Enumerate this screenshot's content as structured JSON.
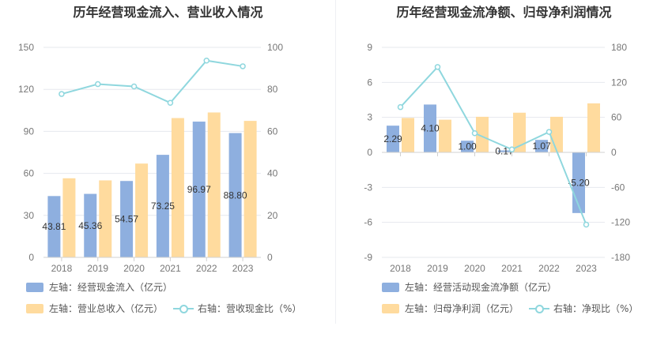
{
  "colors": {
    "bar_primary": "#8eafdf",
    "bar_secondary": "#ffdb9e",
    "line": "#8fd7de",
    "grid": "#e6e8ee",
    "axis": "#d0d0d0"
  },
  "chart_data": [
    {
      "type": "bar",
      "title": "历年经营现金流入、营业收入情况",
      "categories": [
        "2018",
        "2019",
        "2020",
        "2021",
        "2022",
        "2023"
      ],
      "left_axis": {
        "min": 0,
        "max": 150,
        "ticks": [
          "0",
          "30",
          "60",
          "90",
          "120",
          "150"
        ]
      },
      "right_axis": {
        "min": 0,
        "max": 100,
        "ticks": [
          "0",
          "20",
          "40",
          "60",
          "80",
          "100"
        ]
      },
      "series": [
        {
          "name": "左轴：经营现金流入（亿元）",
          "kind": "bar",
          "axis": "left",
          "values": [
            43.81,
            45.36,
            54.57,
            73.25,
            96.97,
            88.8
          ],
          "labels": [
            "43.81",
            "45.36",
            "54.57",
            "73.25",
            "96.97",
            "88.80"
          ]
        },
        {
          "name": "左轴：营业总收入（亿元）",
          "kind": "bar",
          "axis": "left",
          "values": [
            56.5,
            55.0,
            67.0,
            99.5,
            103.5,
            97.5
          ]
        },
        {
          "name": "右轴：营收现金比（%）",
          "kind": "line",
          "axis": "right",
          "values": [
            77.8,
            82.5,
            81.4,
            73.6,
            93.7,
            91.0
          ]
        }
      ],
      "grid": true,
      "legend_position": "bottom"
    },
    {
      "type": "bar",
      "title": "历年经营现金流净额、归母净利润情况",
      "categories": [
        "2018",
        "2019",
        "2020",
        "2021",
        "2022",
        "2023"
      ],
      "left_axis": {
        "min": -9,
        "max": 9,
        "ticks": [
          "-9",
          "-6",
          "-3",
          "0",
          "3",
          "6",
          "9"
        ]
      },
      "right_axis": {
        "min": -180,
        "max": 180,
        "ticks": [
          "-180",
          "-120",
          "-60",
          "0",
          "60",
          "120",
          "180"
        ]
      },
      "series": [
        {
          "name": "左轴：经营活动现金流净额（亿元）",
          "kind": "bar",
          "axis": "left",
          "values": [
            2.29,
            4.1,
            1.0,
            0.17,
            1.07,
            -5.2
          ],
          "labels": [
            "2.29",
            "4.10",
            "1.00",
            "0.17",
            "1.07",
            "-5.20"
          ]
        },
        {
          "name": "左轴：归母净利润（亿元）",
          "kind": "bar",
          "axis": "left",
          "values": [
            2.95,
            2.8,
            3.05,
            3.4,
            3.05,
            4.2
          ]
        },
        {
          "name": "右轴：净现比（%）",
          "kind": "line",
          "axis": "right",
          "values": [
            77.6,
            146.4,
            32.8,
            5.0,
            35.1,
            -123.8
          ]
        }
      ],
      "grid": true,
      "legend_position": "bottom"
    }
  ]
}
